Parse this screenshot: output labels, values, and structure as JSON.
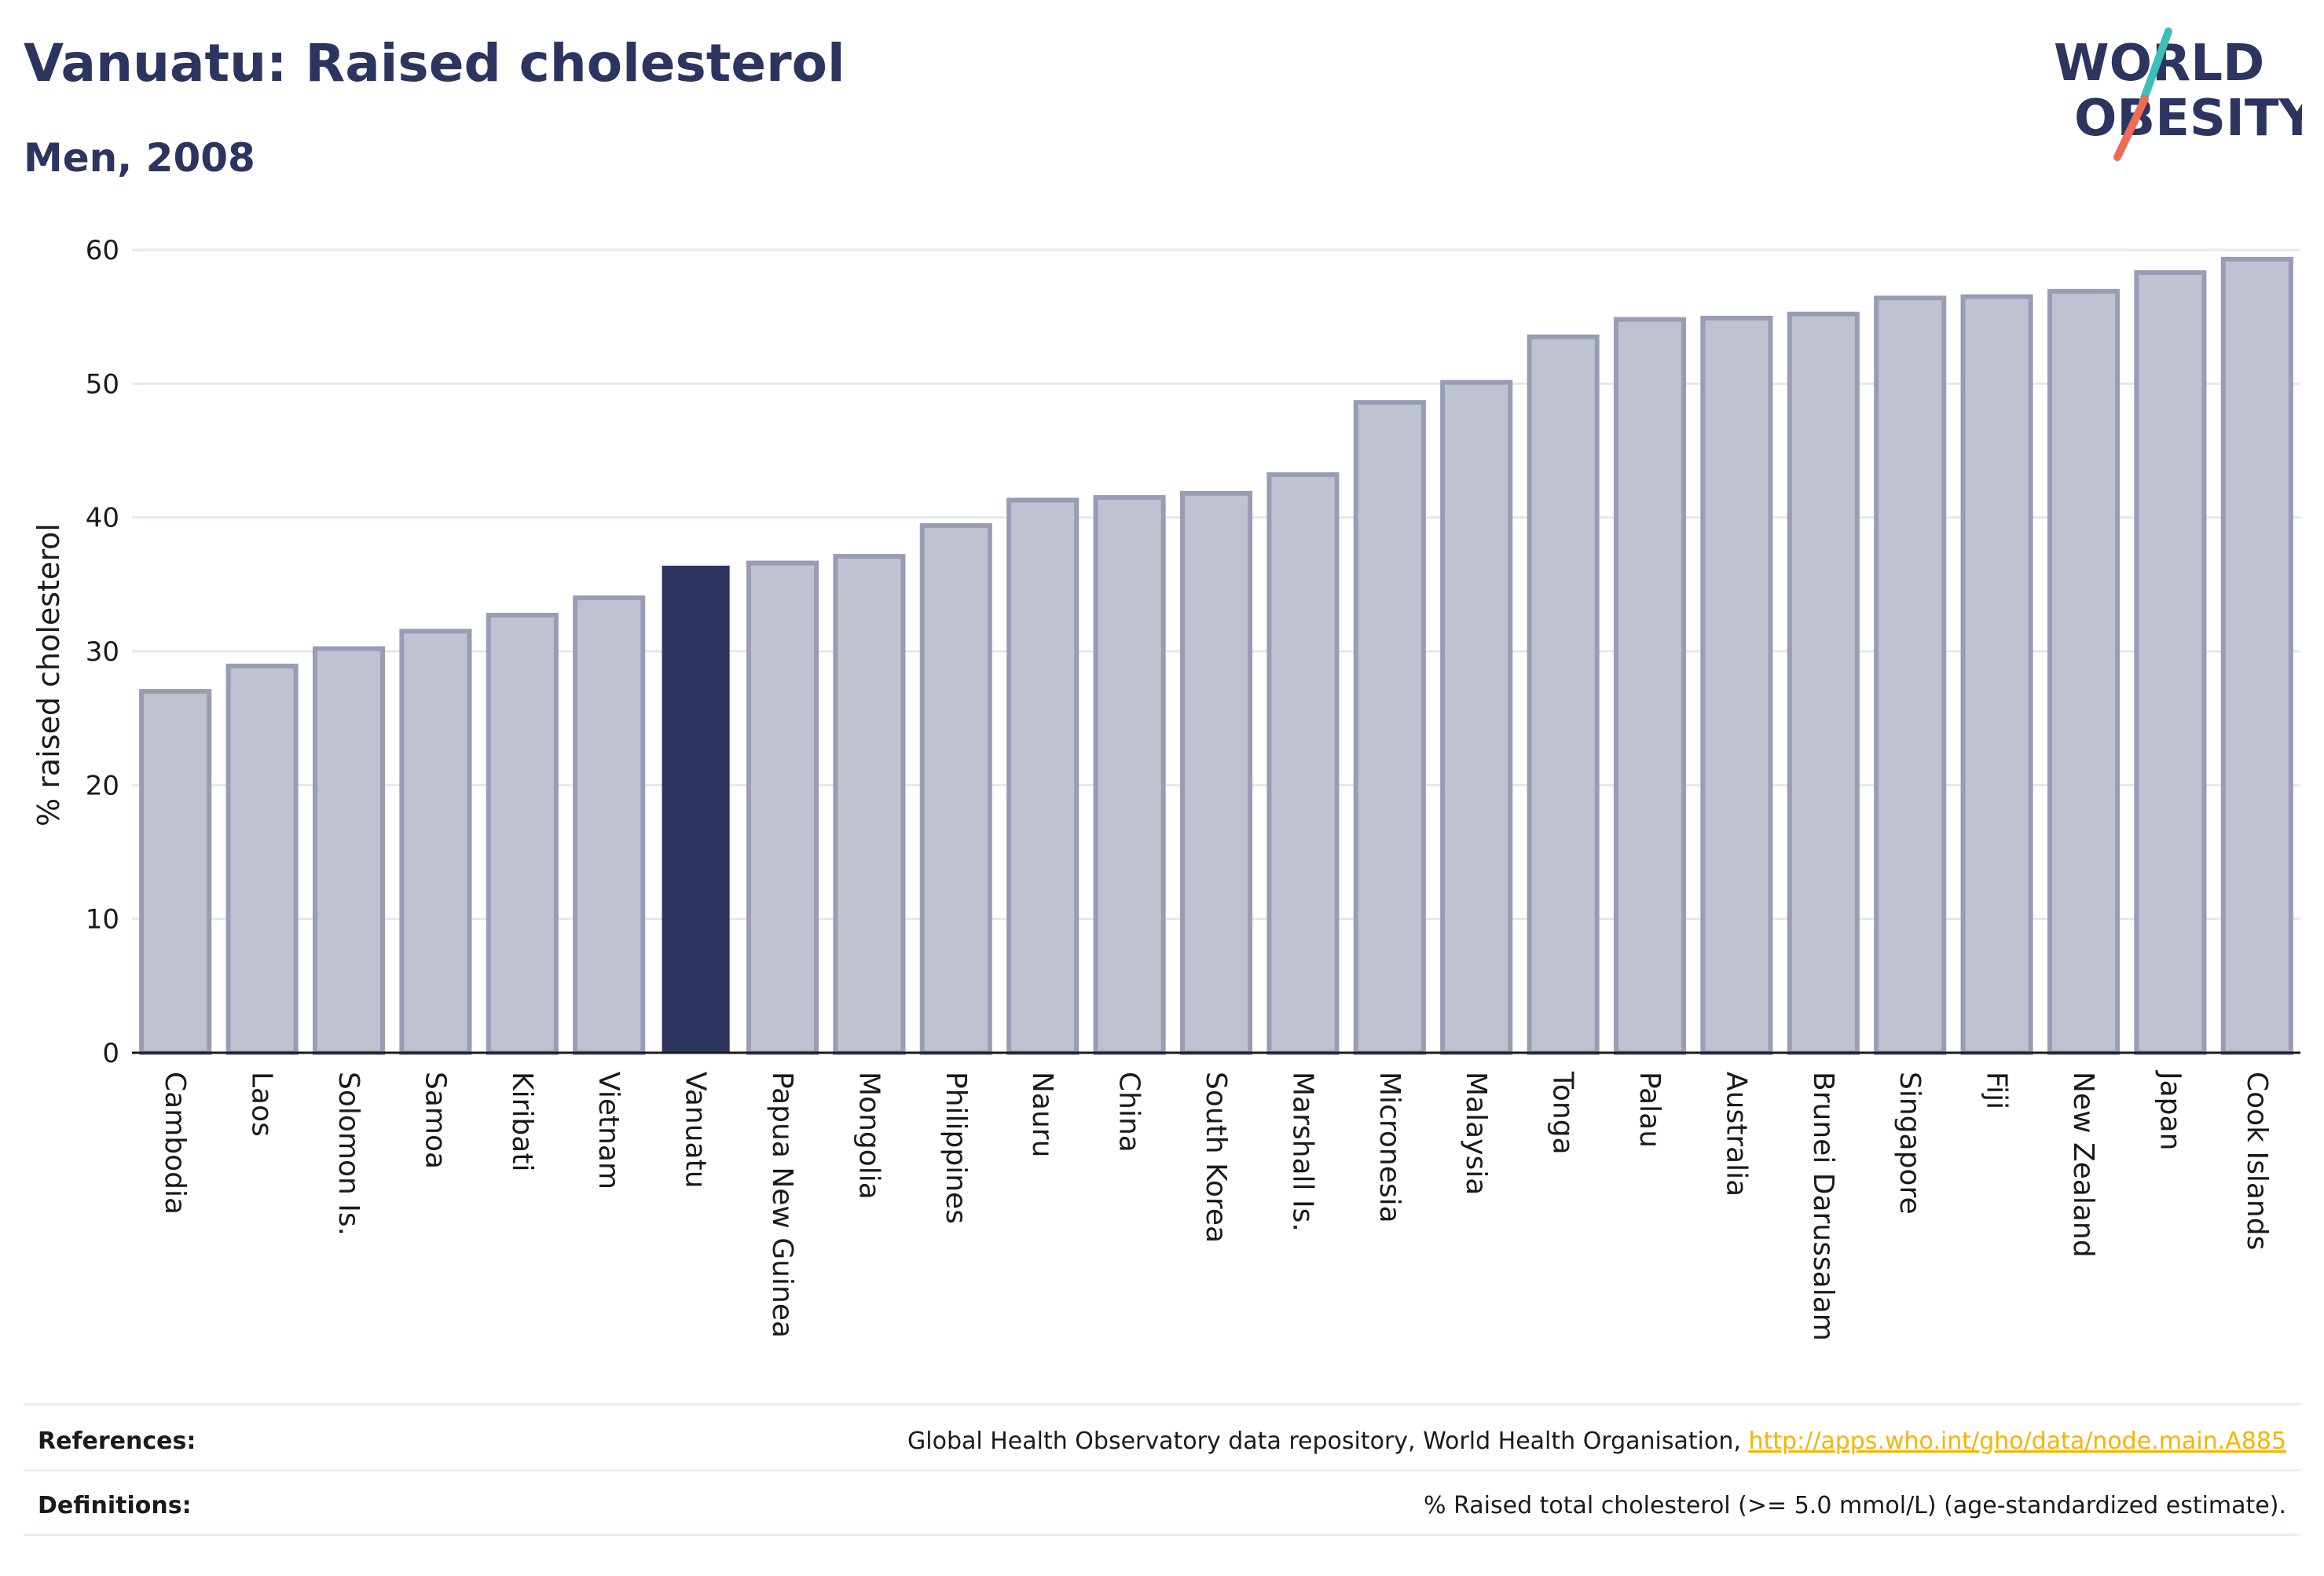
{
  "header": {
    "title": "Vanuatu: Raised cholesterol",
    "subtitle": "Men, 2008"
  },
  "logo": {
    "line1": "WORLD",
    "line2": "OBESITY"
  },
  "colors": {
    "highlight": "#2b3560",
    "bar_fill": "#bfc2d0",
    "bar_stroke": "#989db5",
    "grid": "#e6e7ed",
    "logo_teal": "#3bbfb6",
    "logo_coral": "#f06a55",
    "link": "#f5b400"
  },
  "chart_data": {
    "type": "bar",
    "ylabel": "% raised cholesterol",
    "xlabel": "",
    "ylim": [
      0,
      60
    ],
    "yticks": [
      0,
      10,
      20,
      30,
      40,
      50,
      60
    ],
    "grid": true,
    "highlight": "Vanuatu",
    "categories": [
      "Cambodia",
      "Laos",
      "Solomon Is.",
      "Samoa",
      "Kiribati",
      "Vietnam",
      "Vanuatu",
      "Papua New Guinea",
      "Mongolia",
      "Philippines",
      "Nauru",
      "China",
      "South Korea",
      "Marshall Is.",
      "Micronesia",
      "Malaysia",
      "Tonga",
      "Palau",
      "Australia",
      "Brunei Darussalam",
      "Singapore",
      "Fiji",
      "New Zealand",
      "Japan",
      "Cook Islands"
    ],
    "values": [
      27.0,
      28.9,
      30.2,
      31.5,
      32.7,
      34.0,
      36.4,
      36.6,
      37.1,
      39.4,
      41.3,
      41.5,
      41.8,
      43.2,
      48.6,
      50.1,
      53.5,
      54.8,
      54.9,
      55.2,
      56.4,
      56.5,
      56.9,
      58.3,
      59.3
    ]
  },
  "footer": {
    "references_label": "References:",
    "references_text": "Global Health Observatory data repository, World Health Organisation, ",
    "references_link": "http://apps.who.int/gho/data/node.main.A885",
    "definitions_label": "Definitions:",
    "definitions_text": "% Raised total cholesterol (>= 5.0 mmol/L) (age-standardized estimate)."
  }
}
